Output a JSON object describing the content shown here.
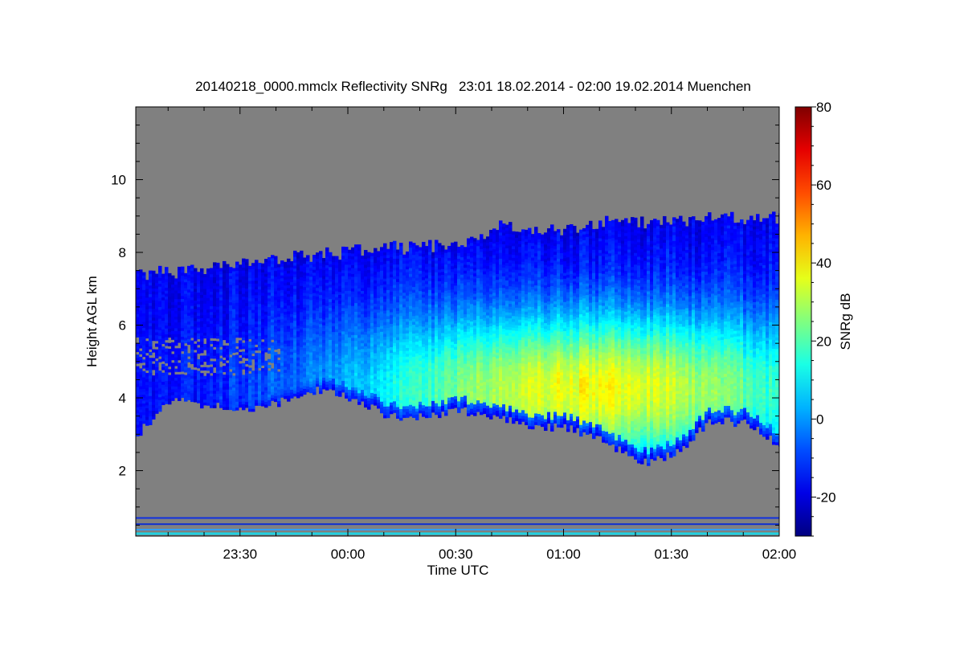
{
  "chart_data": {
    "type": "heatmap",
    "title": "20140218_0000.mmclx Reflectivity SNRg   23:01 18.02.2014 - 02:00 19.02.2014 Muenchen",
    "xlabel": "Time UTC",
    "ylabel": "Height AGL km",
    "x_range": [
      "23:01",
      "02:00"
    ],
    "x_ticks": [
      "23:30",
      "00:00",
      "00:30",
      "01:00",
      "01:30",
      "02:00"
    ],
    "ylim": [
      0.2,
      12.0
    ],
    "y_ticks": [
      2,
      4,
      6,
      8,
      10
    ],
    "background_color": "#808080",
    "colorbar": {
      "label": "SNRg dB",
      "range": [
        -30,
        80
      ],
      "ticks": [
        -20,
        0,
        20,
        40,
        60,
        80
      ],
      "colormap": "jet"
    },
    "echo_profile": {
      "time_min_since_start": [
        0,
        10,
        20,
        30,
        40,
        50,
        60,
        70,
        80,
        90,
        95,
        100,
        110,
        120,
        130,
        140,
        150,
        160,
        170,
        179
      ],
      "top_km": [
        7.4,
        7.4,
        7.5,
        7.7,
        7.8,
        7.9,
        8.0,
        8.1,
        8.1,
        8.2,
        8.4,
        8.7,
        8.6,
        8.6,
        8.8,
        8.8,
        8.8,
        8.9,
        8.9,
        8.9
      ],
      "base_km": [
        3.0,
        4.0,
        3.8,
        3.6,
        3.9,
        4.2,
        4.0,
        3.5,
        3.5,
        3.7,
        3.5,
        3.5,
        3.2,
        3.2,
        2.8,
        2.2,
        2.5,
        3.4,
        3.3,
        2.7
      ]
    },
    "max_snr_region": {
      "time": "01:08",
      "height_km": 4.2,
      "snr_db": 38
    }
  }
}
